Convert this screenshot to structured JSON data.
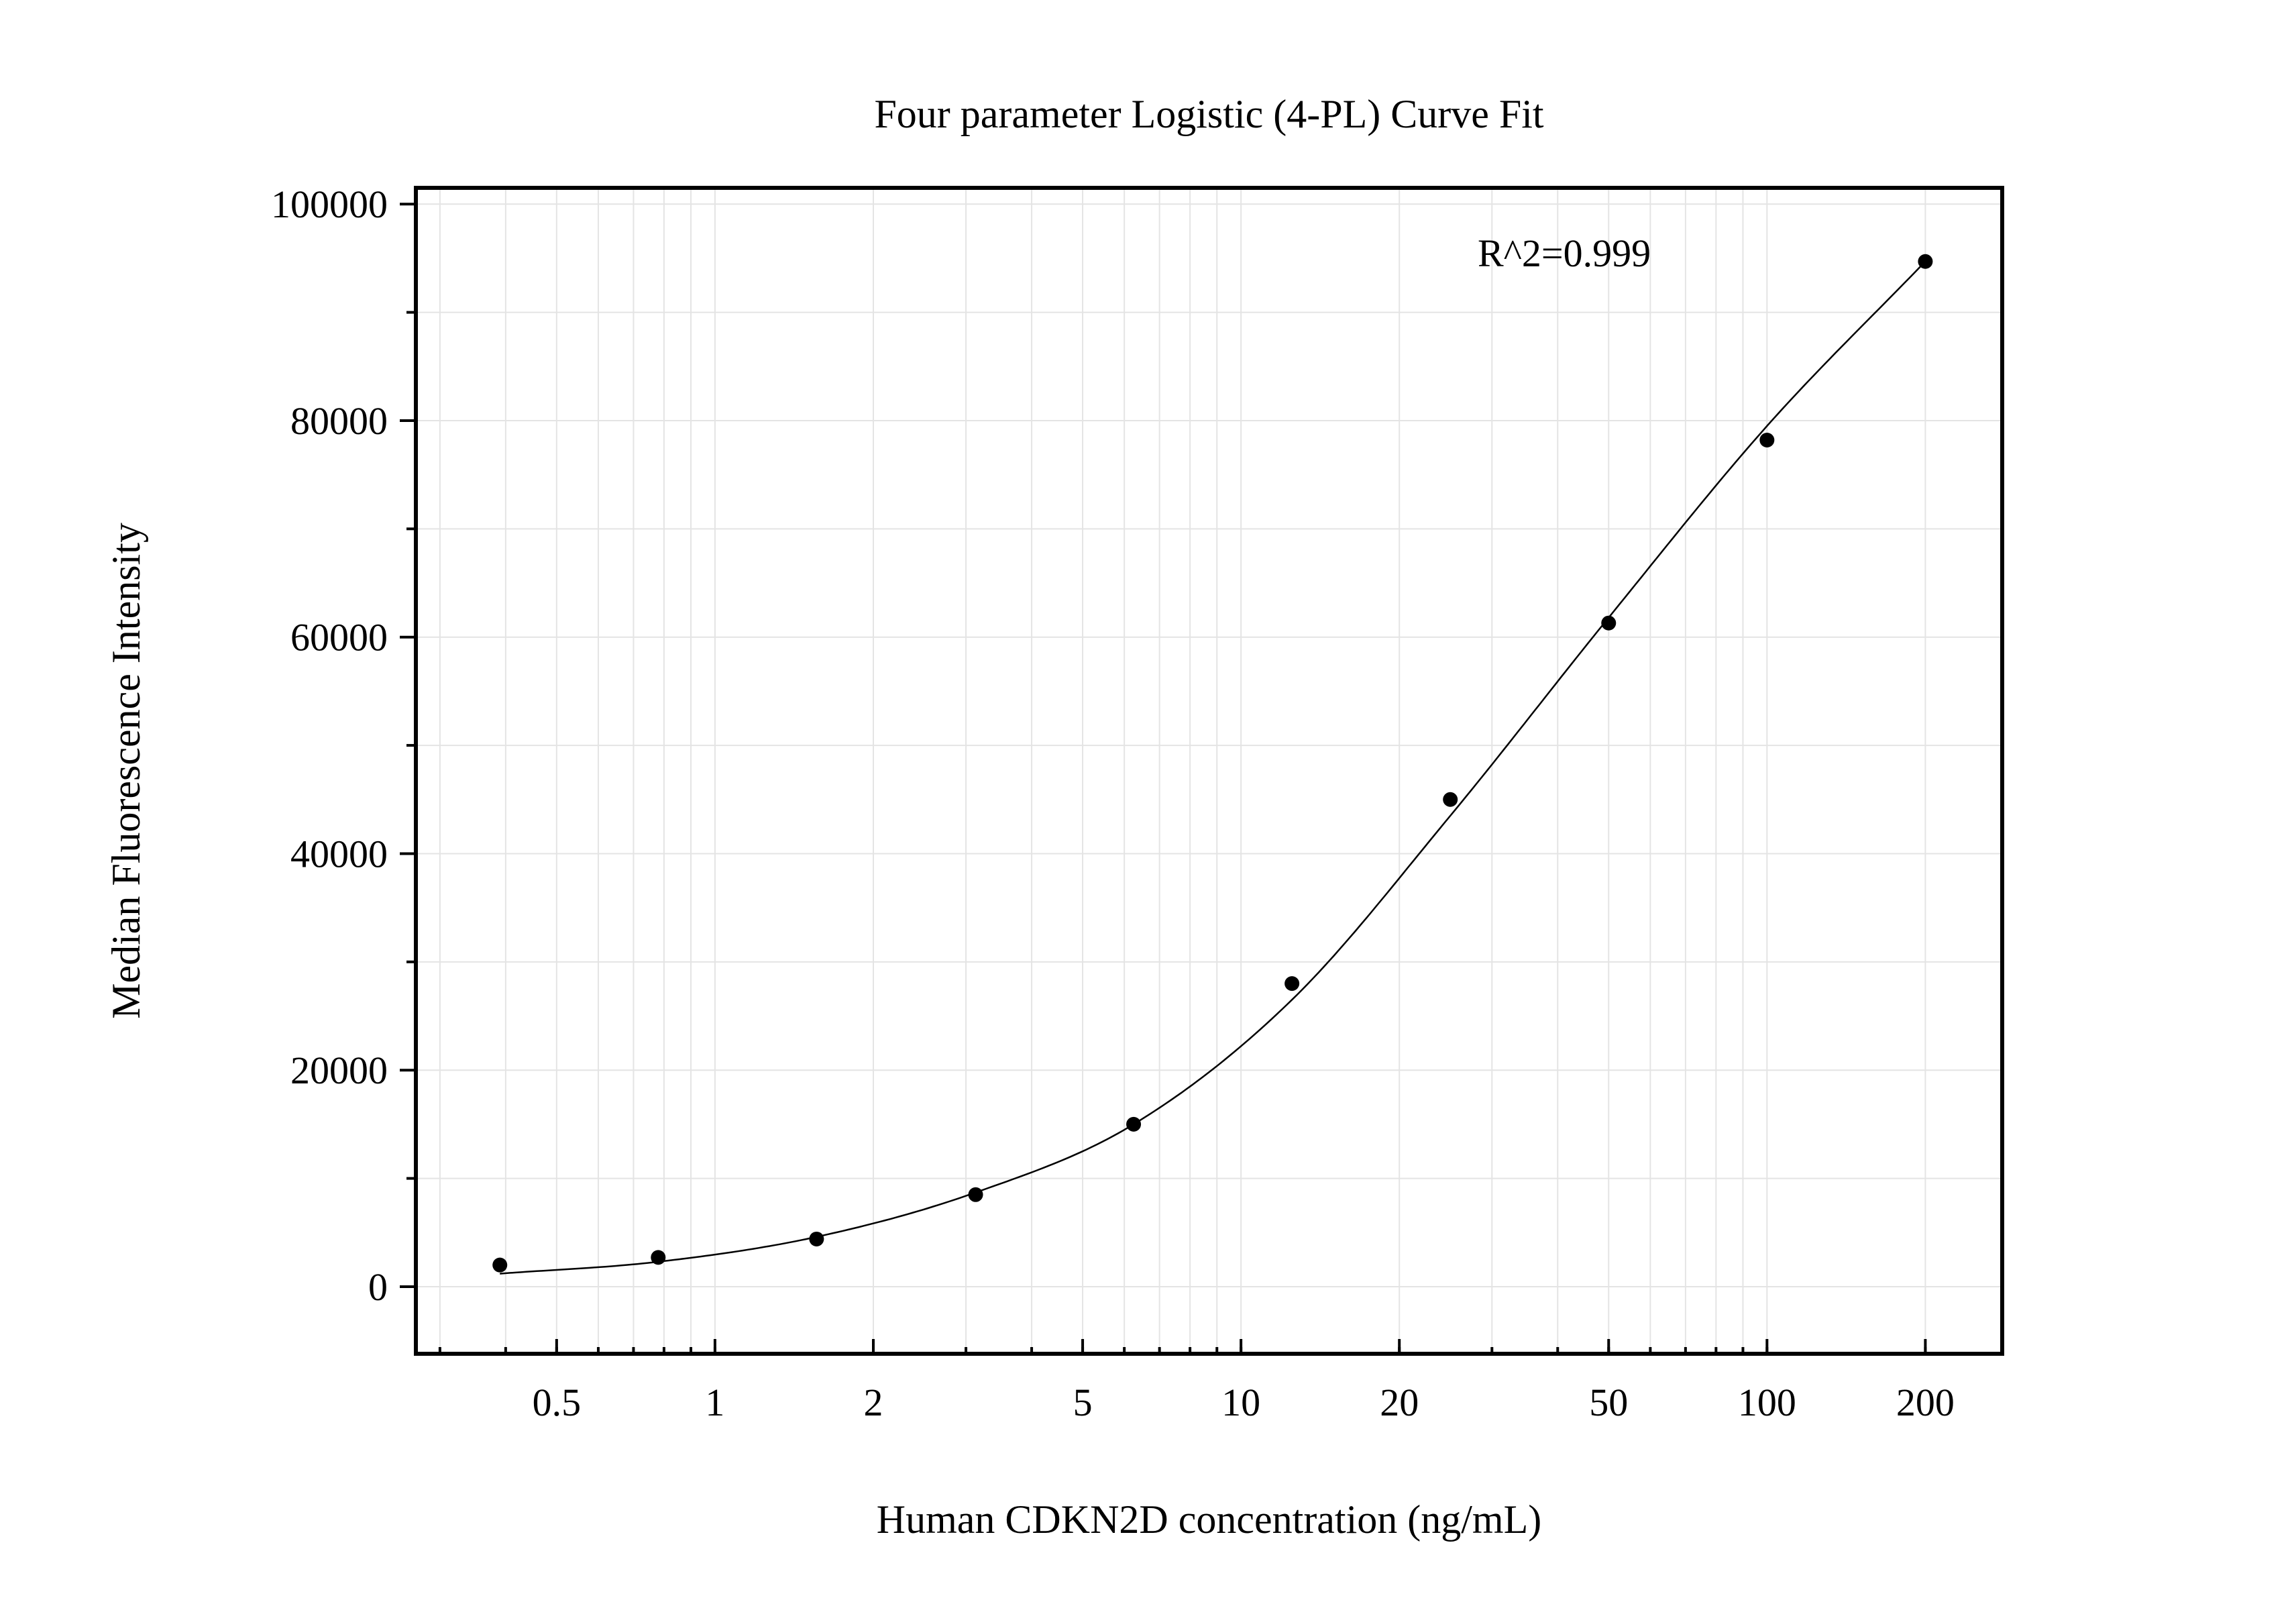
{
  "chart_data": {
    "type": "scatter",
    "title": "Four parameter Logistic (4-PL) Curve Fit",
    "xlabel": "Human CDKN2D concentration (ng/mL)",
    "ylabel": "Median Fluorescence Intensity",
    "x_scale": "log",
    "xlim": [
      0.27,
      280
    ],
    "ylim": [
      -6200,
      101500
    ],
    "x_ticks": [
      {
        "value": 0.5,
        "label": "0.5"
      },
      {
        "value": 1,
        "label": "1"
      },
      {
        "value": 2,
        "label": "2"
      },
      {
        "value": 5,
        "label": "5"
      },
      {
        "value": 10,
        "label": "10"
      },
      {
        "value": 20,
        "label": "20"
      },
      {
        "value": 50,
        "label": "50"
      },
      {
        "value": 100,
        "label": "100"
      },
      {
        "value": 200,
        "label": "200"
      }
    ],
    "y_ticks": [
      {
        "value": 0,
        "label": "0"
      },
      {
        "value": 20000,
        "label": "20000"
      },
      {
        "value": 40000,
        "label": "40000"
      },
      {
        "value": 60000,
        "label": "60000"
      },
      {
        "value": 80000,
        "label": "80000"
      },
      {
        "value": 100000,
        "label": "100000"
      }
    ],
    "grid": true,
    "annotation": "R^2=0.999",
    "series": [
      {
        "points": [
          {
            "x": 0.39,
            "y": 2000
          },
          {
            "x": 0.78,
            "y": 2700
          },
          {
            "x": 1.56,
            "y": 4400
          },
          {
            "x": 3.13,
            "y": 8500
          },
          {
            "x": 6.25,
            "y": 15000
          },
          {
            "x": 12.5,
            "y": 28000
          },
          {
            "x": 25,
            "y": 45000
          },
          {
            "x": 50,
            "y": 61300
          },
          {
            "x": 100,
            "y": 78200
          },
          {
            "x": 200,
            "y": 94700
          }
        ]
      }
    ],
    "fit": {
      "model": "4-PL",
      "x_range": [
        0.39,
        200
      ],
      "curve": [
        {
          "x": 0.39,
          "y": 1200
        },
        {
          "x": 0.78,
          "y": 2300
        },
        {
          "x": 1.56,
          "y": 4600
        },
        {
          "x": 3.13,
          "y": 8700
        },
        {
          "x": 6.25,
          "y": 15000
        },
        {
          "x": 12.5,
          "y": 26500
        },
        {
          "x": 25,
          "y": 43500
        },
        {
          "x": 50,
          "y": 61800
        },
        {
          "x": 100,
          "y": 79500
        },
        {
          "x": 200,
          "y": 94700
        }
      ]
    }
  }
}
